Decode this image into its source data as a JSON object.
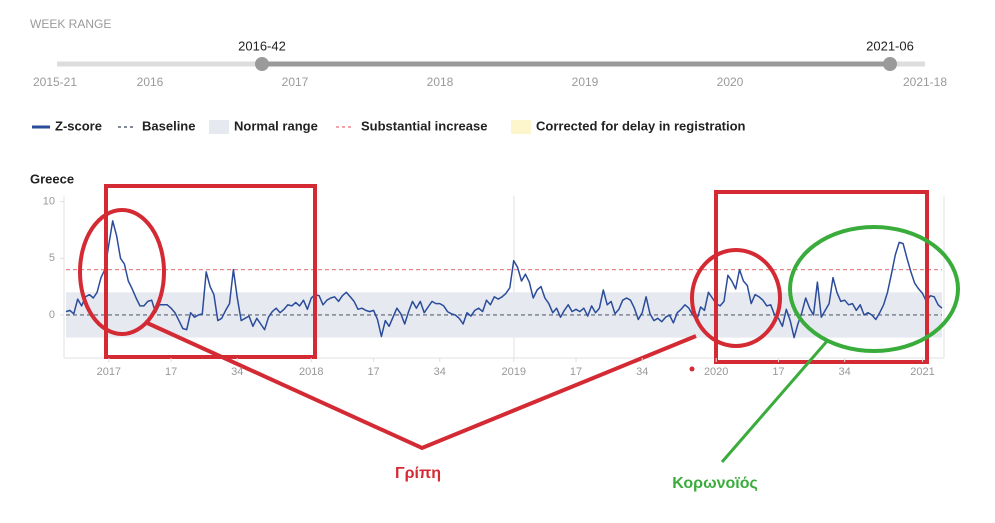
{
  "week_range": {
    "title": "WEEK RANGE",
    "selected": [
      "2016-42",
      "2021-06"
    ],
    "ticks": [
      "2015-21",
      "2016",
      "2017",
      "2018",
      "2019",
      "2020",
      "2021-18"
    ]
  },
  "chart_data": {
    "type": "line",
    "title": "Greece",
    "categories": [
      null,
      null,
      null,
      null,
      null,
      null,
      null,
      null,
      null,
      null,
      null,
      "2017",
      null,
      null,
      null,
      null,
      null,
      null,
      null,
      null,
      null,
      null,
      null,
      null,
      null,
      null,
      null,
      "17",
      null,
      null,
      null,
      null,
      null,
      null,
      null,
      null,
      null,
      null,
      null,
      null,
      null,
      null,
      null,
      null,
      "34",
      null,
      null,
      null,
      null,
      null,
      null,
      null,
      null,
      null,
      null,
      null,
      null,
      null,
      null,
      null,
      null,
      null,
      null,
      "2018",
      null,
      null,
      null,
      null,
      null,
      null,
      null,
      null,
      null,
      null,
      null,
      null,
      null,
      null,
      null,
      "17",
      null,
      null,
      null,
      null,
      null,
      null,
      null,
      null,
      null,
      null,
      null,
      null,
      null,
      null,
      null,
      null,
      "34",
      null,
      null,
      null,
      null,
      null,
      null,
      null,
      null,
      null,
      null,
      null,
      null,
      null,
      null,
      null,
      null,
      null,
      null,
      "2019",
      null,
      null,
      null,
      null,
      null,
      null,
      null,
      null,
      null,
      null,
      null,
      null,
      null,
      null,
      null,
      "17",
      null,
      null,
      null,
      null,
      null,
      null,
      null,
      null,
      null,
      null,
      null,
      null,
      null,
      null,
      null,
      null,
      "34",
      null,
      null,
      null,
      null,
      null,
      null,
      null,
      null,
      null,
      null,
      null,
      null,
      null,
      null,
      null,
      null,
      null,
      null,
      "2020",
      null,
      null,
      null,
      null,
      null,
      null,
      null,
      null,
      null,
      null,
      null,
      null,
      null,
      null,
      null,
      "17",
      null,
      null,
      null,
      null,
      null,
      null,
      null,
      null,
      null,
      null,
      null,
      null,
      null,
      null,
      null,
      null,
      "34",
      null,
      null,
      null,
      null,
      null,
      null,
      null,
      null,
      null,
      null,
      null,
      null,
      null,
      null,
      null,
      null,
      null,
      null,
      null,
      "2021",
      null,
      null,
      null,
      null,
      null
    ],
    "series": [
      {
        "name": "Z-score",
        "color": "#2b4c9b",
        "values": [
          0.3,
          0.4,
          0.1,
          1.4,
          0.8,
          1.6,
          1.8,
          1.5,
          2.0,
          3.3,
          4.0,
          6.2,
          8.3,
          7.0,
          5.0,
          4.5,
          3.0,
          2.3,
          1.5,
          0.8,
          0.8,
          1.2,
          1.3,
          0.2,
          0.9,
          0.9,
          0.9,
          0.6,
          0.2,
          -0.5,
          -1.2,
          -1.3,
          0.2,
          -0.2,
          0.0,
          0.1,
          3.8,
          2.5,
          1.8,
          -0.5,
          -0.3,
          0.4,
          1.0,
          4.0,
          1.5,
          -0.5,
          -0.3,
          -0.1,
          -1.0,
          -0.3,
          -0.8,
          -1.3,
          -0.2,
          0.3,
          0.6,
          0.2,
          0.5,
          0.9,
          0.8,
          1.1,
          0.8,
          1.3,
          0.5,
          1.5,
          1.8,
          1.7,
          0.9,
          1.3,
          1.5,
          1.6,
          1.2,
          1.7,
          2.0,
          1.6,
          1.2,
          0.5,
          0.6,
          0.4,
          0.3,
          0.4,
          -0.4,
          -1.9,
          -0.5,
          -1.0,
          -0.2,
          0.6,
          0.1,
          -0.8,
          0.3,
          1.2,
          0.6,
          1.2,
          0.2,
          0.7,
          1.2,
          1.0,
          1.0,
          0.8,
          0.3,
          0.1,
          0.0,
          -0.3,
          -0.8,
          0.2,
          -0.1,
          0.4,
          0.6,
          0.3,
          1.3,
          0.9,
          1.6,
          1.4,
          1.6,
          1.9,
          2.4,
          4.8,
          4.2,
          3.0,
          3.6,
          2.9,
          1.5,
          2.2,
          2.5,
          1.5,
          1.0,
          0.2,
          0.6,
          -0.2,
          0.4,
          0.9,
          0.3,
          0.5,
          0.3,
          0.6,
          -0.1,
          0.8,
          0.2,
          0.6,
          2.2,
          0.9,
          1.2,
          0.1,
          0.5,
          1.3,
          1.5,
          1.3,
          0.6,
          -0.4,
          0.2,
          1.6,
          0.1,
          -0.5,
          -0.3,
          -0.6,
          -0.2,
          0.0,
          -0.7,
          0.2,
          0.5,
          0.9,
          0.6,
          0.0,
          -0.5,
          0.7,
          0.4,
          2.0,
          1.5,
          1.0,
          0.8,
          1.2,
          3.5,
          3.0,
          2.3,
          4.0,
          3.0,
          2.6,
          1.0,
          1.8,
          1.6,
          1.3,
          0.8,
          0.9,
          0.0,
          -0.3,
          -1.0,
          0.5,
          -0.5,
          -2.0,
          -0.8,
          0.2,
          1.5,
          0.6,
          0.0,
          2.9,
          -0.2,
          0.4,
          1.0,
          3.3,
          2.0,
          1.2,
          1.3,
          0.9,
          1.0,
          0.4,
          0.9,
          0.0,
          0.2,
          0.0,
          -0.4,
          0.2,
          0.9,
          2.0,
          3.6,
          5.3,
          6.4,
          6.3,
          5.0,
          3.8,
          2.8,
          2.3,
          1.9,
          1.2,
          1.7,
          1.6,
          0.9,
          0.6
        ]
      }
    ],
    "baseline": {
      "name": "Baseline",
      "value": 0,
      "color": "#5a6475"
    },
    "normal_range": {
      "name": "Normal range",
      "values": [
        -2,
        2
      ],
      "color": "#e6eaf0"
    },
    "substantial_increase": {
      "name": "Substantial increase",
      "value": 4,
      "color": "#e8888e"
    },
    "delay_correction": {
      "name": "Corrected for delay in registration",
      "color": "#fdf6cc"
    },
    "ylim": [
      -3.8,
      10.5
    ],
    "yticks": [
      0,
      5,
      10
    ],
    "annotations": [
      "Γρίπη",
      "Κορωνοϊός"
    ]
  }
}
